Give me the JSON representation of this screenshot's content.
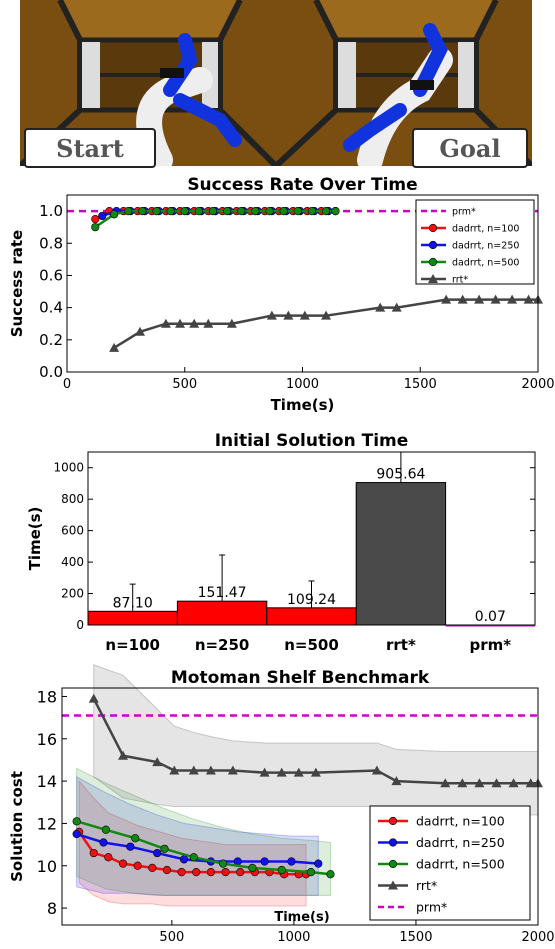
{
  "scene": {
    "start_label": "Start",
    "goal_label": "Goal"
  },
  "chart_data": [
    {
      "type": "line",
      "title": "Success Rate Over Time",
      "xlabel": "Time(s)",
      "ylabel": "Success rate",
      "xlim": [
        0,
        2000
      ],
      "ylim": [
        0.0,
        1.1
      ],
      "xticks": [
        "0",
        "500",
        "1000",
        "1500",
        "2000"
      ],
      "yticks": [
        "0.0",
        "0.2",
        "0.4",
        "0.6",
        "0.8",
        "1.0"
      ],
      "legend": "upper-right",
      "hlines": [
        {
          "name": "prm*",
          "y": 1.0,
          "color": "#cc00cc"
        }
      ],
      "series": [
        {
          "name": "dadrrt, n=100",
          "color": "#ee1111",
          "marker": "circle",
          "x": [
            120,
            180,
            240,
            300,
            360,
            420,
            480,
            540,
            600,
            660,
            720,
            780,
            840,
            900,
            960,
            1020,
            1080,
            1140
          ],
          "y": [
            0.95,
            1,
            1,
            1,
            1,
            1,
            1,
            1,
            1,
            1,
            1,
            1,
            1,
            1,
            1,
            1,
            1,
            1
          ]
        },
        {
          "name": "dadrrt, n=250",
          "color": "#1111ee",
          "marker": "circle",
          "x": [
            150,
            210,
            270,
            330,
            390,
            450,
            510,
            570,
            630,
            690,
            750,
            810,
            870,
            930,
            990,
            1050,
            1110
          ],
          "y": [
            0.97,
            1,
            1,
            1,
            1,
            1,
            1,
            1,
            1,
            1,
            1,
            1,
            1,
            1,
            1,
            1,
            1
          ]
        },
        {
          "name": "dadrrt, n=500",
          "color": "#118811",
          "marker": "circle",
          "x": [
            120,
            200,
            260,
            320,
            380,
            440,
            500,
            560,
            620,
            680,
            740,
            800,
            860,
            920,
            980,
            1040,
            1100,
            1140
          ],
          "y": [
            0.9,
            0.98,
            1,
            1,
            1,
            1,
            1,
            1,
            1,
            1,
            1,
            1,
            1,
            1,
            1,
            1,
            1,
            1
          ]
        },
        {
          "name": "rrt*",
          "color": "#444444",
          "marker": "triangle",
          "x": [
            200,
            310,
            420,
            480,
            540,
            600,
            700,
            870,
            940,
            1010,
            1100,
            1330,
            1400,
            1610,
            1680,
            1750,
            1820,
            1890,
            1960,
            2000
          ],
          "y": [
            0.15,
            0.25,
            0.3,
            0.3,
            0.3,
            0.3,
            0.3,
            0.35,
            0.35,
            0.35,
            0.35,
            0.4,
            0.4,
            0.45,
            0.45,
            0.45,
            0.45,
            0.45,
            0.45,
            0.45
          ]
        }
      ]
    },
    {
      "type": "bar",
      "title": "Initial Solution Time",
      "xlabel": "",
      "ylabel": "Time(s)",
      "ylim": [
        0,
        1100
      ],
      "yticks": [
        "0",
        "200",
        "400",
        "600",
        "800",
        "1000"
      ],
      "categories": [
        "n=100",
        "n=250",
        "n=500",
        "rrt*",
        "prm*"
      ],
      "values": [
        87.1,
        151.47,
        109.24,
        905.64,
        0.07
      ],
      "value_labels": [
        "87.10",
        "151.47",
        "109.24",
        "905.64",
        "0.07"
      ],
      "error_top": [
        260,
        445,
        280,
        1100,
        0
      ],
      "colors": [
        "#ff0000",
        "#ff0000",
        "#ff0000",
        "#4a4a4a",
        "#cc00cc"
      ]
    },
    {
      "type": "line",
      "title": "Motoman Shelf Benchmark",
      "xlabel": "Time(s)",
      "ylabel": "Solution cost",
      "xlim": [
        50,
        2000
      ],
      "ylim": [
        7.2,
        18.4
      ],
      "xticks": [
        "500",
        "1000",
        "1500",
        "2000"
      ],
      "yticks": [
        "8",
        "10",
        "12",
        "14",
        "16",
        "18"
      ],
      "legend": "lower-right",
      "hlines": [
        {
          "name": "prm*",
          "y": 17.1,
          "color": "#cc00cc"
        }
      ],
      "series": [
        {
          "name": "dadrrt, n=100",
          "color": "#ee1111",
          "marker": "circle",
          "x": [
            120,
            180,
            240,
            300,
            360,
            420,
            480,
            540,
            600,
            660,
            720,
            780,
            840,
            900,
            960,
            1020,
            1050
          ],
          "y": [
            11.6,
            10.6,
            10.4,
            10.1,
            10.0,
            9.9,
            9.8,
            9.7,
            9.7,
            9.7,
            9.7,
            9.7,
            9.7,
            9.7,
            9.6,
            9.6,
            9.6
          ],
          "band_lo": [
            9.2,
            8.6,
            8.3,
            8.2,
            8.2,
            8.2,
            8.1,
            8.1,
            8.1,
            8.1,
            8.1,
            8.1,
            8.1,
            8.1,
            8.1,
            8.1,
            8.1
          ],
          "band_hi": [
            14.0,
            13.2,
            12.5,
            12.2,
            11.9,
            11.7,
            11.5,
            11.3,
            11.2,
            11.1,
            11.0,
            11.0,
            11.0,
            11.0,
            11.0,
            11.0,
            11.0
          ]
        },
        {
          "name": "dadrrt, n=250",
          "color": "#1111ee",
          "marker": "circle",
          "x": [
            110,
            220,
            330,
            440,
            550,
            660,
            770,
            880,
            990,
            1100
          ],
          "y": [
            11.5,
            11.1,
            10.9,
            10.6,
            10.3,
            10.2,
            10.2,
            10.2,
            10.2,
            10.1
          ],
          "band_lo": [
            9.0,
            8.7,
            8.7,
            8.6,
            8.6,
            8.6,
            8.6,
            8.6,
            8.6,
            8.6
          ],
          "band_hi": [
            14.2,
            13.5,
            12.9,
            12.4,
            12.0,
            11.8,
            11.6,
            11.5,
            11.4,
            11.4
          ]
        },
        {
          "name": "dadrrt, n=500",
          "color": "#118811",
          "marker": "circle",
          "x": [
            110,
            230,
            350,
            470,
            590,
            710,
            830,
            950,
            1070,
            1150
          ],
          "y": [
            12.1,
            11.7,
            11.3,
            10.8,
            10.4,
            10.1,
            9.9,
            9.8,
            9.7,
            9.6
          ],
          "band_lo": [
            9.5,
            8.9,
            8.7,
            8.6,
            8.6,
            8.6,
            8.6,
            8.6,
            8.6,
            8.6
          ],
          "band_hi": [
            14.6,
            13.9,
            13.3,
            12.7,
            12.2,
            11.8,
            11.5,
            11.3,
            11.2,
            11.1
          ]
        },
        {
          "name": "rrt*",
          "color": "#444444",
          "marker": "triangle",
          "x": [
            180,
            300,
            440,
            510,
            590,
            660,
            750,
            880,
            950,
            1020,
            1090,
            1340,
            1420,
            1620,
            1690,
            1760,
            1830,
            1900,
            1970,
            2000
          ],
          "y": [
            17.9,
            15.2,
            14.9,
            14.5,
            14.5,
            14.5,
            14.5,
            14.4,
            14.4,
            14.4,
            14.4,
            14.5,
            14.0,
            13.9,
            13.9,
            13.9,
            13.9,
            13.9,
            13.9,
            13.9
          ],
          "band_lo": [
            14.2,
            13.2,
            12.9,
            12.8,
            12.8,
            12.8,
            12.8,
            12.8,
            12.8,
            12.8,
            12.8,
            12.8,
            12.5,
            12.4,
            12.4,
            12.4,
            12.4,
            12.4,
            12.4,
            12.4
          ],
          "band_hi": [
            19.5,
            19.0,
            17.4,
            16.6,
            16.3,
            16.1,
            15.9,
            15.8,
            15.8,
            15.8,
            15.8,
            15.8,
            15.5,
            15.4,
            15.4,
            15.4,
            15.4,
            15.4,
            15.4,
            15.4
          ]
        }
      ]
    }
  ]
}
